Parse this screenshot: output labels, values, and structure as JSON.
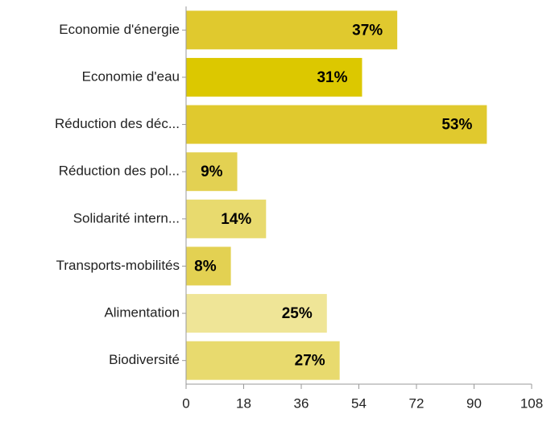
{
  "chart_data": {
    "type": "barh",
    "categories": [
      "Economie d'énergie",
      "Economie d'eau",
      "Réduction des déc...",
      "Réduction des pol...",
      "Solidarité intern...",
      "Transports-mobilités",
      "Alimentation",
      "Biodiversité"
    ],
    "values": [
      66,
      55,
      94,
      16,
      25,
      14,
      44,
      48
    ],
    "value_labels": [
      "37%",
      "31%",
      "53%",
      "9%",
      "14%",
      "8%",
      "25%",
      "27%"
    ],
    "colors": [
      "#e0c92e",
      "#dcc800",
      "#e0c92e",
      "#e3d152",
      "#e8da6e",
      "#e3d152",
      "#efe597",
      "#e8da6e"
    ],
    "xlim": [
      0,
      108
    ],
    "xticks": [
      0,
      18,
      36,
      54,
      72,
      90,
      108
    ],
    "grid": false
  }
}
